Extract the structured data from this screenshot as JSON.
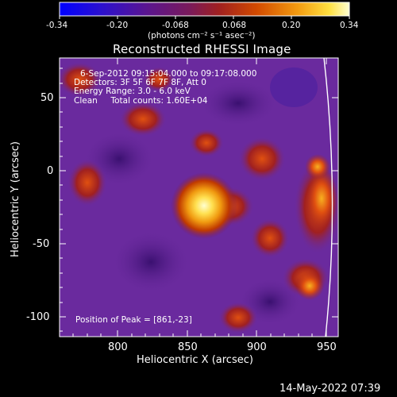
{
  "colorbar": {
    "tick_labels": [
      "-0.34",
      "-0.20",
      "-0.068",
      "0.068",
      "0.20",
      "0.34"
    ],
    "units_label": "(photons cm⁻² s⁻¹ asec⁻²)",
    "colormap": [
      "#0000ff",
      "#3c00b4",
      "#6a0f83",
      "#7d1a55",
      "#a02020",
      "#d24a00",
      "#f29a10",
      "#ffe040",
      "#ffffb0"
    ]
  },
  "title": "Reconstructed RHESSI Image",
  "info": {
    "time_range": "6-Sep-2012 09:15:04.000 to 09:17:08.000",
    "detectors": "Detectors: 3F 5F 6F 7F 8F, Att 0",
    "energy_range": "Energy Range: 3.0 - 6.0 keV",
    "method_counts": "Clean     Total counts: 1.60E+04",
    "peak": "Position of Peak = [861,-23]"
  },
  "axes": {
    "xlabel": "Heliocentric X (arcsec)",
    "ylabel": "Heliocentric Y (arcsec)",
    "xticks": [
      "800",
      "850",
      "900",
      "950"
    ],
    "yticks": [
      "50",
      "0",
      "-50",
      "-100"
    ],
    "xlim": [
      760,
      950
    ],
    "ylim": [
      -115,
      75
    ]
  },
  "image": {
    "peak_x": 861,
    "peak_y": -23,
    "colors": {
      "background": "#6a2a9e",
      "limb": "#ffffff"
    }
  },
  "footer": {
    "timestamp": "14-May-2022 07:39"
  }
}
